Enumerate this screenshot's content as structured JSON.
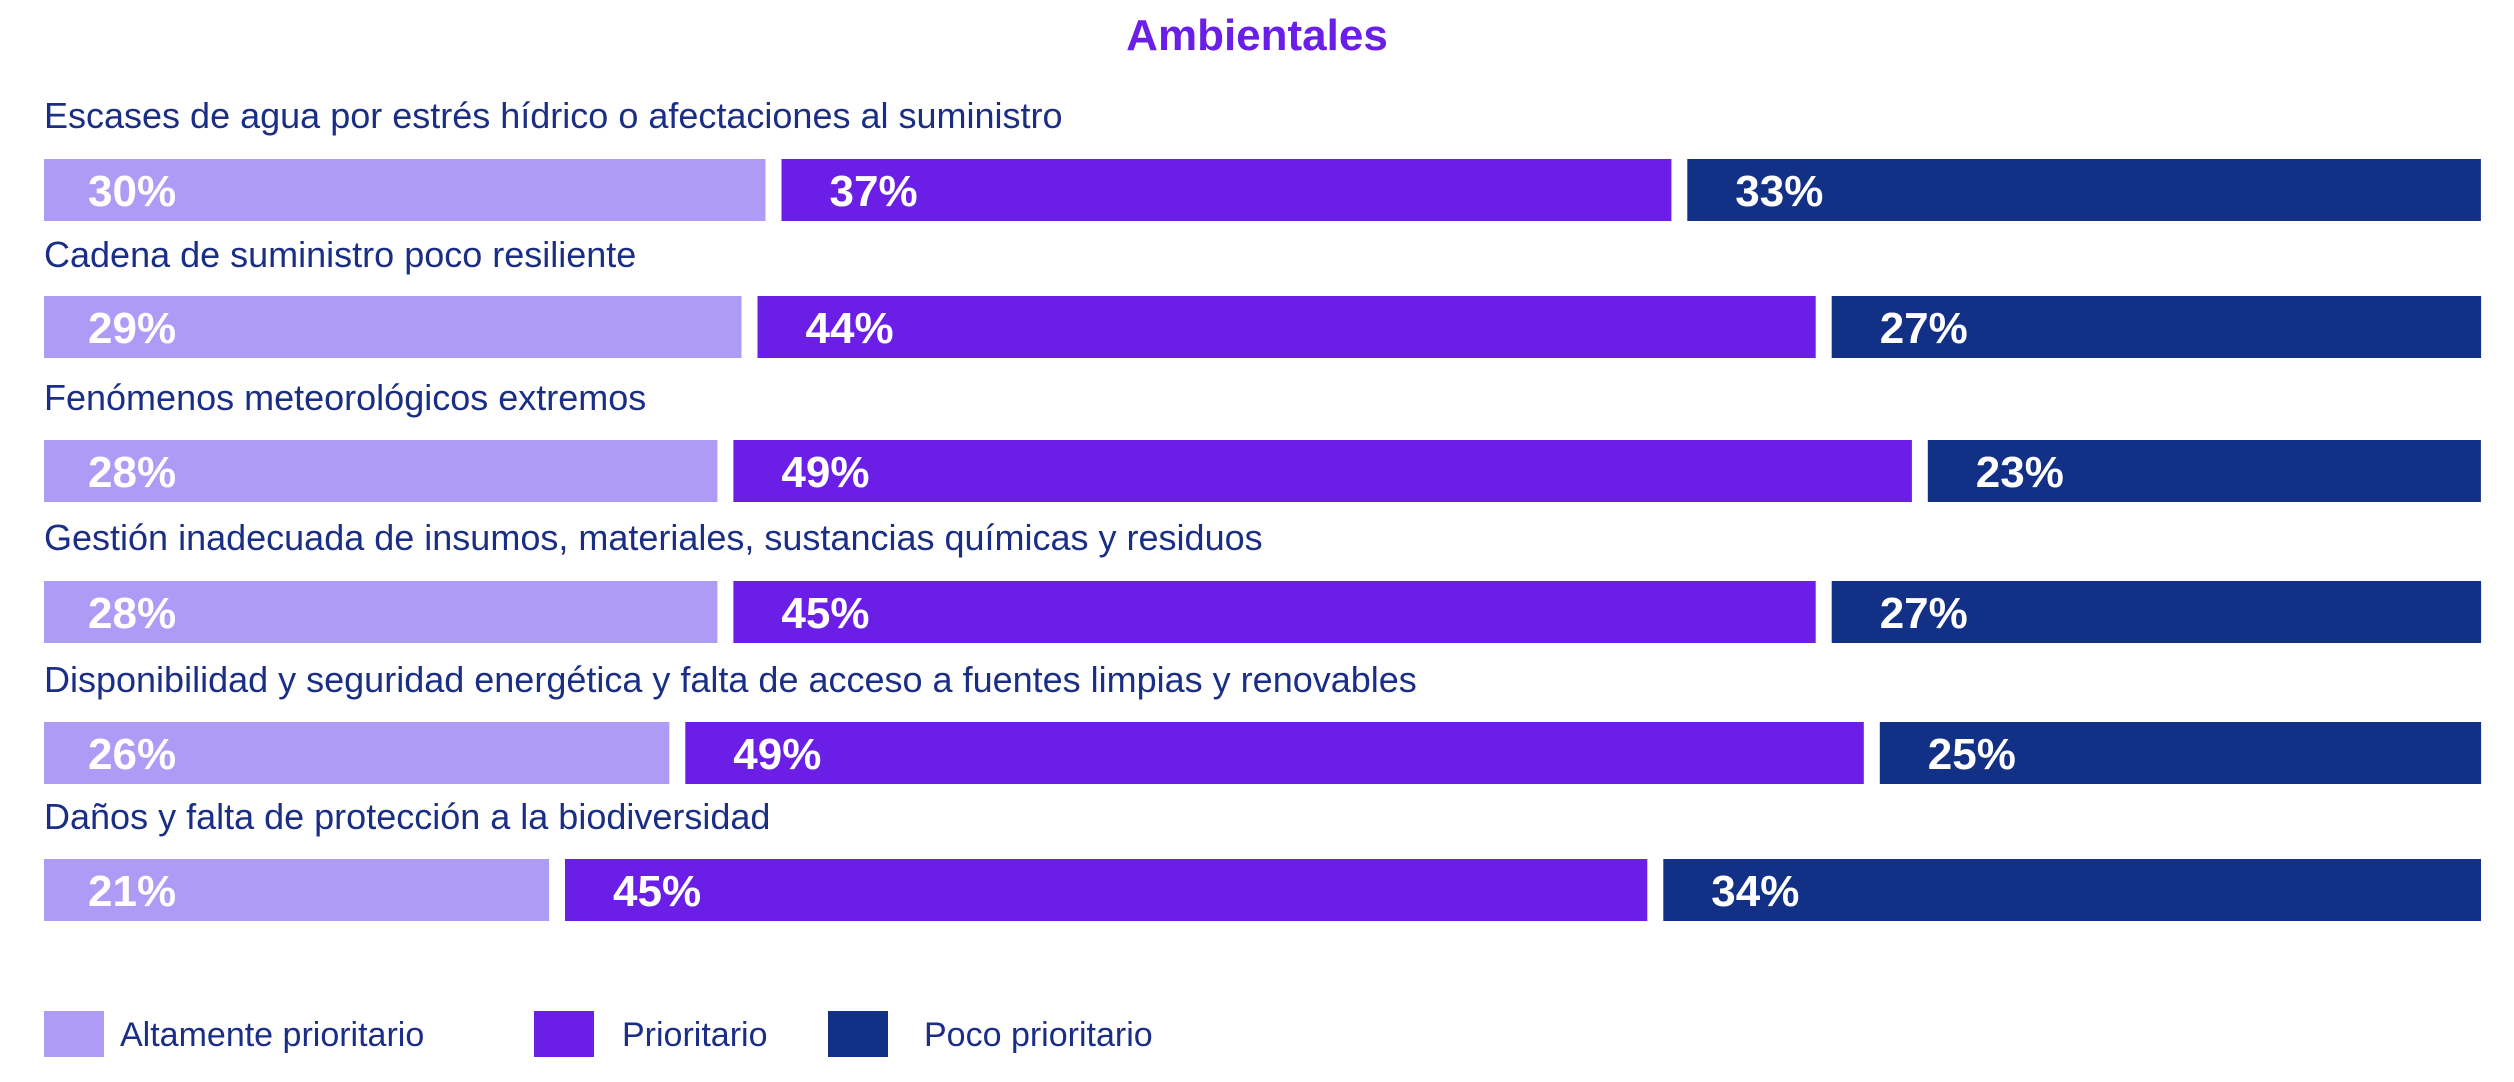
{
  "chart_data": {
    "type": "bar",
    "orientation": "horizontal",
    "stacked": true,
    "title": "Ambientales",
    "categories": [
      "Escases de agua por estrés hídrico o afectaciones al suministro",
      "Cadena de suministro poco resiliente",
      "Fenómenos meteorológicos extremos",
      "Gestión inadecuada de insumos, materiales, sustancias químicas y residuos",
      "Disponibilidad y seguridad energética y falta de acceso a fuentes limpias y renovables",
      "Daños y falta de protección a la biodiversidad"
    ],
    "series": [
      {
        "name": "Altamente prioritario",
        "color": "#ae9bf5",
        "values": [
          30,
          29,
          28,
          28,
          26,
          21
        ]
      },
      {
        "name": "Prioritario",
        "color": "#6a1ee6",
        "values": [
          37,
          44,
          49,
          45,
          49,
          45
        ]
      },
      {
        "name": "Poco prioritario",
        "color": "#133087",
        "values": [
          33,
          27,
          23,
          27,
          25,
          34
        ]
      }
    ],
    "value_suffix": "%",
    "xlim": [
      0,
      100
    ],
    "grid": false,
    "legend": "bottom-left",
    "title_color": "#6a1ee6",
    "label_color": "#1b2e86"
  }
}
